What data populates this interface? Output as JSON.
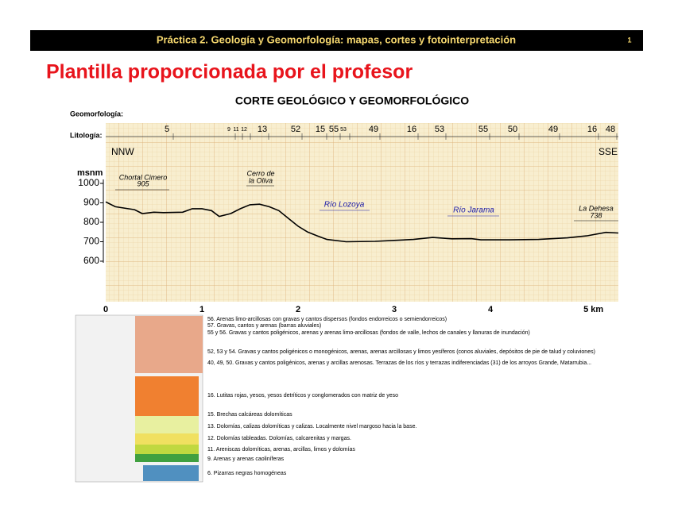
{
  "header": {
    "title": "Práctica 2. Geología y Geomorfología: mapas, cortes y fotointerpretación",
    "page": "1"
  },
  "title": "Plantilla proporcionada por el profesor",
  "section": {
    "title": "CORTE GEOLÓGICO Y GEOMORFOLÓGICO",
    "geomorfologia": "Geomorfología:",
    "litologia": "Litología:",
    "lithology_units": [
      "5",
      "9",
      "11",
      "12",
      "13",
      "52",
      "15",
      "55",
      "53",
      "49",
      "16",
      "53",
      "55",
      "50",
      "49",
      "16",
      "48"
    ],
    "left_direction": "NNW",
    "right_direction": "SSE",
    "y_label": "msnm",
    "annotations": [
      "Chortal Cimero",
      "905",
      "Cerro de",
      "la Oliva",
      "Río Lozoya",
      "Río Jarama",
      "La Dehesa",
      "738"
    ],
    "profile": {
      "x": [
        0,
        0.1,
        0.3,
        0.38,
        0.5,
        0.6,
        0.8,
        0.9,
        1.0,
        1.1,
        1.18,
        1.3,
        1.4,
        1.5,
        1.6,
        1.7,
        1.8,
        1.9,
        2.0,
        2.1,
        2.2,
        2.3,
        2.5,
        2.8,
        3.0,
        3.2,
        3.4,
        3.6,
        3.8,
        3.9,
        4.2,
        4.5,
        4.8,
        5.0,
        5.2,
        5.33
      ],
      "y": [
        905,
        880,
        865,
        845,
        852,
        850,
        852,
        870,
        870,
        860,
        830,
        845,
        870,
        890,
        893,
        880,
        860,
        820,
        780,
        750,
        730,
        712,
        700,
        702,
        707,
        712,
        722,
        715,
        716,
        710,
        710,
        712,
        720,
        730,
        748,
        745
      ],
      "xlim": [
        0,
        5.33
      ],
      "ylim": [
        600,
        1000
      ],
      "yticks": [
        600,
        700,
        800,
        900,
        1000
      ],
      "xticks": [
        0,
        1,
        2,
        3,
        4,
        {
          "value": 5,
          "label": "5 km"
        }
      ]
    }
  },
  "legend": [
    "56. Arenas limo-arcillosas con gravas y cantos dispersos (fondos endorreicos o semiendorreicos)",
    "57. Gravas, cantos y arenas (barras aluviales)",
    "55 y 56. Gravas y cantos poligénicos, arenas y arenas limo-arcillosas (fondos de valle, lechos de canales y llanuras de inundación)",
    "52, 53 y 54. Gravas y cantos poligénicos o monogénicos, arenas, arenas arcillosas y limos yesíferos (conos aluviales, depósitos de pie de talud y coluviones)",
    "40, 49, 50. Gravas y cantos poligénicos, arenas y arcillas arenosas. Terrazas de los ríos y terrazas indiferenciadas (31) de los arroyos Grande, Matarrubia...",
    "16. Lutitas rojas, yesos, yesos detríticos y conglomerados con matriz de yeso",
    "15. Brechas calcáreas dolomíticas",
    "13. Dolomías, calizas dolomíticas y calizas. Localmente nivel margoso hacia la base.",
    "12. Dolomías tableadas. Dolomías, calcarenitas y margas.",
    "11. Areniscas dolomíticas, arenas, arcillas, limos y dolomías",
    "9. Arenas y arenas caoliníferas",
    "6. Pizarras negras homogéneas"
  ]
}
